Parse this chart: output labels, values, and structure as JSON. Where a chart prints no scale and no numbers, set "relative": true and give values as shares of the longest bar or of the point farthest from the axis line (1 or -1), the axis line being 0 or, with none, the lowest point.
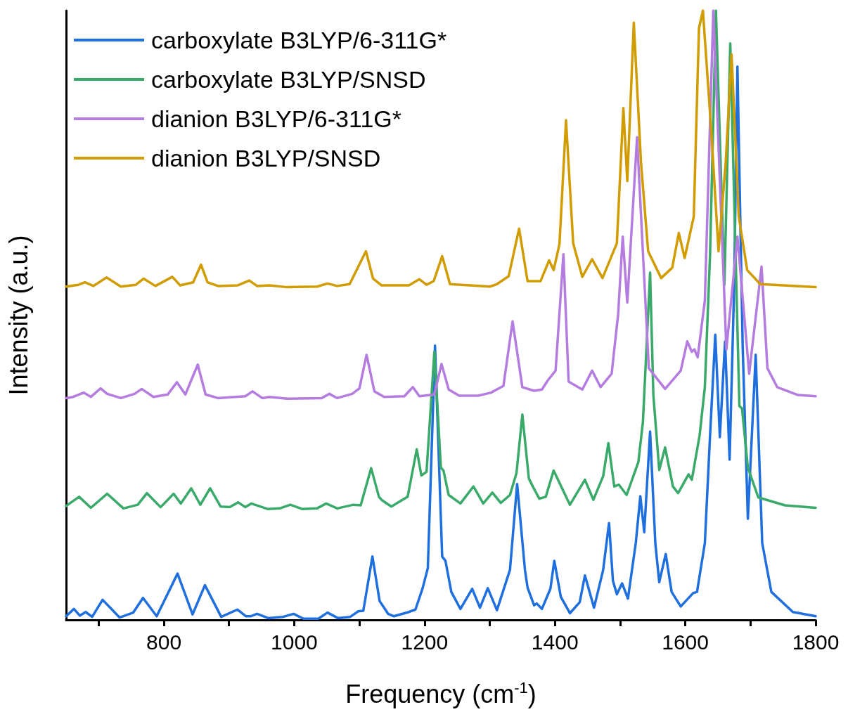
{
  "chart_data": {
    "type": "line",
    "relative": true,
    "xlabel": "Frequency (cm$^{-1}$)",
    "ylabel": "Intensity (a.u.)",
    "xlim": [
      650,
      1800
    ],
    "xticks": [
      {
        "value": 700,
        "label": null
      },
      800,
      {
        "value": 900,
        "label": null
      },
      1000,
      {
        "value": 1100,
        "label": null
      },
      1200,
      {
        "value": 1300,
        "label": null
      },
      1400,
      {
        "value": 1500,
        "label": null
      },
      1600,
      {
        "value": 1700,
        "label": null
      },
      1800
    ],
    "tick_labels": "x",
    "legend": "top left",
    "marker": "none",
    "line_style": "solid",
    "series": [
      {
        "name": "carboxylate B3LYP/6-311G*",
        "color": "#1f6fde",
        "x": [
          650,
          662,
          671,
          680,
          690,
          706,
          732,
          753,
          768,
          789,
          821,
          844,
          863,
          888,
          913,
          926,
          933,
          943,
          960,
          983,
          999,
          1014,
          1037,
          1051,
          1067,
          1086,
          1098,
          1106,
          1120,
          1131,
          1144,
          1153,
          1176,
          1186,
          1197,
          1205,
          1216,
          1227,
          1232,
          1241,
          1255,
          1273,
          1285,
          1297,
          1311,
          1331,
          1342,
          1354,
          1358,
          1368,
          1372,
          1380,
          1393,
          1399,
          1409,
          1423,
          1438,
          1446,
          1460,
          1474,
          1483,
          1489,
          1495,
          1503,
          1512,
          1524,
          1531,
          1537,
          1546,
          1554,
          1560,
          1570,
          1579,
          1593,
          1612,
          1618,
          1630,
          1638,
          1646,
          1653,
          1661,
          1668,
          1675,
          1680,
          1688,
          1696,
          1708,
          1718,
          1732,
          1765,
          1800
        ],
        "values": [
          0.006,
          0.018,
          0.007,
          0.013,
          0.005,
          0.033,
          0.004,
          0.012,
          0.036,
          0.006,
          0.076,
          0.009,
          0.057,
          0.005,
          0.017,
          0.006,
          0.006,
          0.01,
          0.003,
          0.005,
          0.01,
          0.002,
          0.002,
          0.012,
          0.003,
          0.005,
          0.014,
          0.015,
          0.104,
          0.031,
          0.01,
          0.006,
          0.013,
          0.017,
          0.052,
          0.085,
          0.45,
          0.104,
          0.097,
          0.046,
          0.018,
          0.051,
          0.02,
          0.052,
          0.016,
          0.082,
          0.223,
          0.082,
          0.053,
          0.024,
          0.027,
          0.018,
          0.051,
          0.097,
          0.038,
          0.011,
          0.029,
          0.073,
          0.02,
          0.082,
          0.159,
          0.064,
          0.042,
          0.06,
          0.035,
          0.126,
          0.203,
          0.144,
          0.309,
          0.126,
          0.062,
          0.108,
          0.046,
          0.022,
          0.044,
          0.046,
          0.126,
          0.303,
          0.468,
          0.3,
          0.457,
          0.263,
          0.55,
          0.908,
          0.45,
          0.166,
          0.435,
          0.126,
          0.046,
          0.013,
          0.006
        ]
      },
      {
        "name": "carboxylate B3LYP/SNSD",
        "color": "#3aaa6a",
        "x": [
          650,
          670,
          688,
          713,
          738,
          760,
          774,
          795,
          815,
          826,
          842,
          856,
          871,
          887,
          901,
          914,
          925,
          934,
          959,
          978,
          994,
          1012,
          1035,
          1049,
          1066,
          1091,
          1102,
          1118,
          1130,
          1134,
          1149,
          1174,
          1188,
          1195,
          1203,
          1215,
          1225,
          1229,
          1237,
          1255,
          1275,
          1290,
          1304,
          1317,
          1331,
          1341,
          1350,
          1360,
          1366,
          1376,
          1386,
          1398,
          1423,
          1446,
          1459,
          1474,
          1482,
          1491,
          1498,
          1510,
          1528,
          1535,
          1546,
          1551,
          1560,
          1569,
          1581,
          1589,
          1605,
          1610,
          1622,
          1630,
          1638,
          1647,
          1660,
          1669,
          1683,
          1687,
          1696,
          1712,
          1753,
          1800
        ],
        "values": [
          0.187,
          0.202,
          0.184,
          0.207,
          0.183,
          0.189,
          0.208,
          0.185,
          0.207,
          0.191,
          0.216,
          0.189,
          0.216,
          0.186,
          0.185,
          0.193,
          0.185,
          0.191,
          0.182,
          0.183,
          0.189,
          0.182,
          0.183,
          0.191,
          0.183,
          0.189,
          0.188,
          0.249,
          0.202,
          0.197,
          0.186,
          0.202,
          0.28,
          0.237,
          0.243,
          0.44,
          0.25,
          0.245,
          0.205,
          0.191,
          0.219,
          0.191,
          0.209,
          0.192,
          0.205,
          0.241,
          0.337,
          0.232,
          0.219,
          0.199,
          0.202,
          0.245,
          0.189,
          0.23,
          0.197,
          0.236,
          0.29,
          0.219,
          0.222,
          0.205,
          0.259,
          0.325,
          0.57,
          0.369,
          0.246,
          0.283,
          0.219,
          0.208,
          0.239,
          0.23,
          0.303,
          0.382,
          0.6,
          1,
          0.55,
          0.946,
          0.351,
          0.347,
          0.25,
          0.201,
          0.188,
          0.184
        ]
      },
      {
        "name": "dianion B3LYP/6-311G*",
        "color": "#b57ce0",
        "x": [
          650,
          661,
          677,
          688,
          703,
          713,
          734,
          755,
          766,
          784,
          806,
          820,
          833,
          852,
          864,
          883,
          909,
          925,
          936,
          951,
          962,
          989,
          1042,
          1054,
          1066,
          1089,
          1100,
          1111,
          1123,
          1138,
          1169,
          1182,
          1192,
          1215,
          1226,
          1237,
          1253,
          1282,
          1302,
          1321,
          1335,
          1350,
          1368,
          1380,
          1389,
          1401,
          1413,
          1421,
          1442,
          1457,
          1470,
          1487,
          1497,
          1504,
          1511,
          1526,
          1544,
          1569,
          1593,
          1603,
          1610,
          1614,
          1619,
          1630,
          1643,
          1663,
          1680,
          1698,
          1717,
          1726,
          1741,
          1773,
          1800
        ],
        "values": [
          0.364,
          0.366,
          0.373,
          0.366,
          0.38,
          0.371,
          0.364,
          0.371,
          0.379,
          0.366,
          0.37,
          0.39,
          0.37,
          0.419,
          0.37,
          0.364,
          0.366,
          0.367,
          0.375,
          0.364,
          0.366,
          0.363,
          0.364,
          0.371,
          0.364,
          0.371,
          0.38,
          0.435,
          0.375,
          0.366,
          0.367,
          0.382,
          0.367,
          0.37,
          0.42,
          0.378,
          0.368,
          0.368,
          0.373,
          0.384,
          0.49,
          0.382,
          0.376,
          0.378,
          0.393,
          0.409,
          0.6,
          0.391,
          0.378,
          0.409,
          0.382,
          0.404,
          0.502,
          0.629,
          0.521,
          0.792,
          0.413,
          0.379,
          0.409,
          0.457,
          0.44,
          0.444,
          0.431,
          0.524,
          1,
          0.444,
          0.629,
          0.404,
          0.58,
          0.413,
          0.382,
          0.369,
          0.367
        ]
      },
      {
        "name": "dianion B3LYP/SNSD",
        "color": "#d19c00",
        "x": [
          650,
          669,
          679,
          692,
          712,
          734,
          757,
          769,
          787,
          813,
          825,
          845,
          857,
          867,
          883,
          913,
          931,
          943,
          962,
          989,
          1035,
          1051,
          1066,
          1085,
          1110,
          1121,
          1134,
          1176,
          1192,
          1203,
          1214,
          1227,
          1239,
          1300,
          1311,
          1329,
          1345,
          1358,
          1378,
          1391,
          1398,
          1407,
          1417,
          1428,
          1442,
          1457,
          1473,
          1495,
          1505,
          1511,
          1521,
          1532,
          1543,
          1563,
          1580,
          1590,
          1599,
          1613,
          1621,
          1627,
          1640,
          1651,
          1662,
          1671,
          1682,
          1695,
          1715,
          1800
        ],
        "values": [
          0.547,
          0.55,
          0.554,
          0.548,
          0.562,
          0.547,
          0.55,
          0.56,
          0.548,
          0.563,
          0.549,
          0.554,
          0.583,
          0.554,
          0.548,
          0.549,
          0.557,
          0.548,
          0.549,
          0.546,
          0.547,
          0.552,
          0.548,
          0.551,
          0.605,
          0.56,
          0.549,
          0.549,
          0.559,
          0.55,
          0.556,
          0.597,
          0.551,
          0.547,
          0.551,
          0.564,
          0.642,
          0.556,
          0.556,
          0.59,
          0.574,
          0.617,
          0.82,
          0.618,
          0.563,
          0.592,
          0.561,
          0.618,
          0.84,
          0.72,
          0.98,
          0.751,
          0.605,
          0.561,
          0.578,
          0.635,
          0.594,
          0.662,
          0.971,
          1,
          0.8,
          0.605,
          0.751,
          0.928,
          0.662,
          0.574,
          0.551,
          0.546
        ]
      }
    ]
  }
}
